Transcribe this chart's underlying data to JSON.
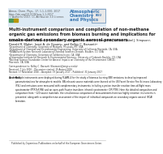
{
  "bg_color": "#ffffff",
  "header_meta_line1": "Atmos. Chem. Phys., 17, 1-1–1-000, 2017",
  "header_meta_line2": "https://doi.org/10.5194/acp-1-1-2017",
  "header_meta_line3": "© Author(s) 2017. CC Attribution 3.0 License.",
  "journal_name_line1": "Atmospheric",
  "journal_name_line2": "Chemistry",
  "journal_name_line3": "and Physics",
  "journal_color": "#3a76b0",
  "egu_box_color": "#e8e8e8",
  "egu_border_color": "#3a76b0",
  "colored_sq1": "#4a9a5a",
  "colored_sq2": "#b8960a",
  "title": "Multi-instrument comparison and compilation of non-methane\norganic gas emissions from biomass burning and implications for\nsmoke-derived secondary organic aerosol precursors",
  "title_color": "#222222",
  "authors": "Kanako S. Hatch¹, Robert J. Yokelson¹, Carleigh E. Stockwell¹², Pamela S. Veres³, Isabel J. Simpson⁴,\nDonald R. Blake⁴, Joost A. de Gouw³µ, and Kelley C. Barsanti⁶²",
  "affil1": "¹Department of Chemistry, University of Montana, Missoula, MT, USA",
  "affil2": "²Department of Chemical and Environmental Engineering, University of California Riverside, CA, USA",
  "affil3": "³NOAA/Earth System Research Laboratory/Chemical Sciences Division, Boulder, CO, USA",
  "affil4": "⁴Department of Chemistry, University of California Irvine, CA, USA",
  "affil5": "µCooperative Institute for Research in Environmental Sciences, University of Colorado Boulder, CO, USA",
  "affil6": "⁶National Science Foundation Center for Aerosol Impacts on Chemistry of the Environment (CAICE),",
  "affil7": "Riverside, CA, USA",
  "corr": "Correspondence to: Kelley C. Barsanti (kbarsanti@engr.ucr.edu)",
  "date1": "Received: 7 July 2016 – Discussion started: 15 August 2016",
  "date2": "Revised: 17 November 2016 – Accepted: 19 January 2017 – Published: 31 January 2017",
  "abstract_label": "Abstract.",
  "abstract_body": "Multiple instruments were deployed during FLAME-4 for the study of biomass burning (BB) emissions to develop improved parameterizations for atmospheric models. BB-relevant source materials were burned at the US Forest Service Fire Sciences Laboratory (FSL) and emissions were measured with complementary instruments including a proton transfer reaction time-of-flight mass spectrometer (PTR-ToF-MS) and an open-path Fourier transform infrared spectrometer (OP-FTIR). Here the detailed composition and comparison from ~120 source materials, the simultaneous comparison of measurements from two highly sensitive instruments is presented, along with a comprehensive assessment of the impact of individual compounds on secondary organic aerosol (SOA) formation.",
  "footer_text": "Published by Copernicus Publications on behalf of the European Geosciences Union.",
  "meta_color": "#555555",
  "text_color": "#111111",
  "small_color": "#333333",
  "line_color": "#bbbbbb"
}
